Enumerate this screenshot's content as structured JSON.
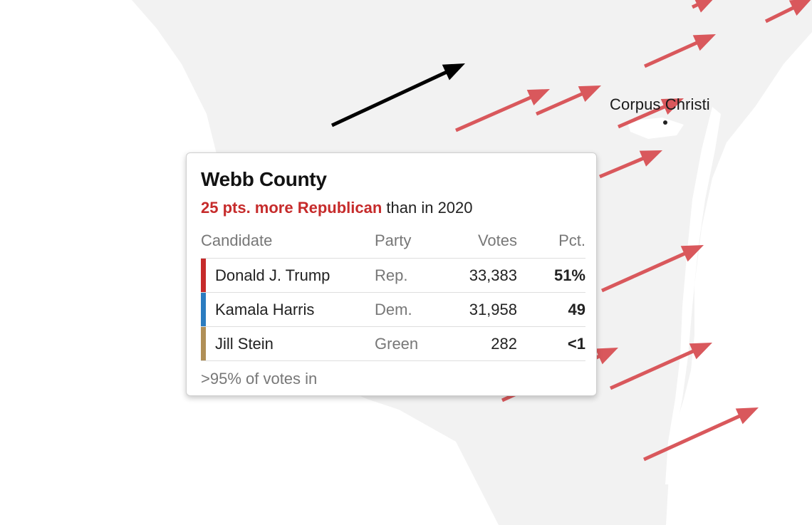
{
  "map": {
    "city": {
      "name": "Corpus Christi"
    },
    "colors": {
      "land": "#f2f2f2",
      "water": "#ffffff",
      "republican_shift_arrow": "#d9585c",
      "selected_arrow": "#000000",
      "city_dot": "#222222"
    }
  },
  "tooltip": {
    "county": "Webb County",
    "shift": {
      "emphasis": "25 pts. more Republican",
      "rest": " than in 2020"
    },
    "headers": {
      "candidate": "Candidate",
      "party": "Party",
      "votes": "Votes",
      "pct": "Pct."
    },
    "rows": [
      {
        "candidate": "Donald J. Trump",
        "party": "Rep.",
        "votes": "33,383",
        "pct": "51%",
        "color": "#c62b2b"
      },
      {
        "candidate": "Kamala Harris",
        "party": "Dem.",
        "votes": "31,958",
        "pct": "49",
        "color": "#2b7cc0"
      },
      {
        "candidate": "Jill Stein",
        "party": "Green",
        "votes": "282",
        "pct": "<1",
        "color": "#b08f57"
      }
    ],
    "reporting": ">95% of votes in"
  }
}
